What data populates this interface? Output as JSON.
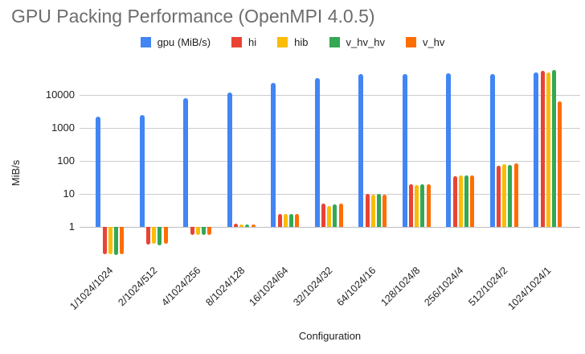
{
  "title": "GPU Packing Performance (OpenMPI 4.0.5)",
  "legend": [
    {
      "label": "gpu (MiB/s)",
      "color": "#4285F4"
    },
    {
      "label": "hi",
      "color": "#EA4335"
    },
    {
      "label": "hib",
      "color": "#FBBC04"
    },
    {
      "label": "v_hv_hv",
      "color": "#34A853"
    },
    {
      "label": "v_hv",
      "color": "#FF6D01"
    }
  ],
  "chart_data": {
    "type": "bar",
    "title": "GPU Packing Performance (OpenMPI 4.0.5)",
    "xlabel": "Configuration",
    "ylabel": "MiB/s",
    "y_scale": "log",
    "y_ticks": [
      1,
      10,
      100,
      1000,
      10000
    ],
    "ylim": [
      0.1,
      100000
    ],
    "grid": true,
    "legend_position": "top",
    "categories": [
      "1/1024/1024",
      "2/1024/512",
      "4/1024/256",
      "8/1024/128",
      "16/1024/64",
      "32/1024/32",
      "64/1024/16",
      "128/1024/8",
      "256/1024/4",
      "512/1024/2",
      "1024/1024/1"
    ],
    "series": [
      {
        "name": "gpu (MiB/s)",
        "color": "#4285F4",
        "values": [
          2200,
          2500,
          8000,
          12000,
          23000,
          32000,
          42000,
          43000,
          45000,
          43000,
          48000
        ]
      },
      {
        "name": "hi",
        "color": "#EA4335",
        "values": [
          0.15,
          0.29,
          0.58,
          1.25,
          2.5,
          5.0,
          9.8,
          19.5,
          35,
          72,
          55000
        ]
      },
      {
        "name": "hib",
        "color": "#FBBC04",
        "values": [
          0.15,
          0.3,
          0.58,
          1.2,
          2.4,
          4.3,
          9.5,
          19,
          37,
          81,
          49000
        ]
      },
      {
        "name": "v_hv_hv",
        "color": "#34A853",
        "values": [
          0.14,
          0.28,
          0.57,
          1.2,
          2.4,
          4.7,
          10,
          20,
          37,
          75,
          56000
        ]
      },
      {
        "name": "v_hv",
        "color": "#FF6D01",
        "values": [
          0.15,
          0.3,
          0.58,
          1.2,
          2.4,
          5.0,
          9.7,
          20,
          37,
          85,
          6500
        ]
      }
    ]
  }
}
